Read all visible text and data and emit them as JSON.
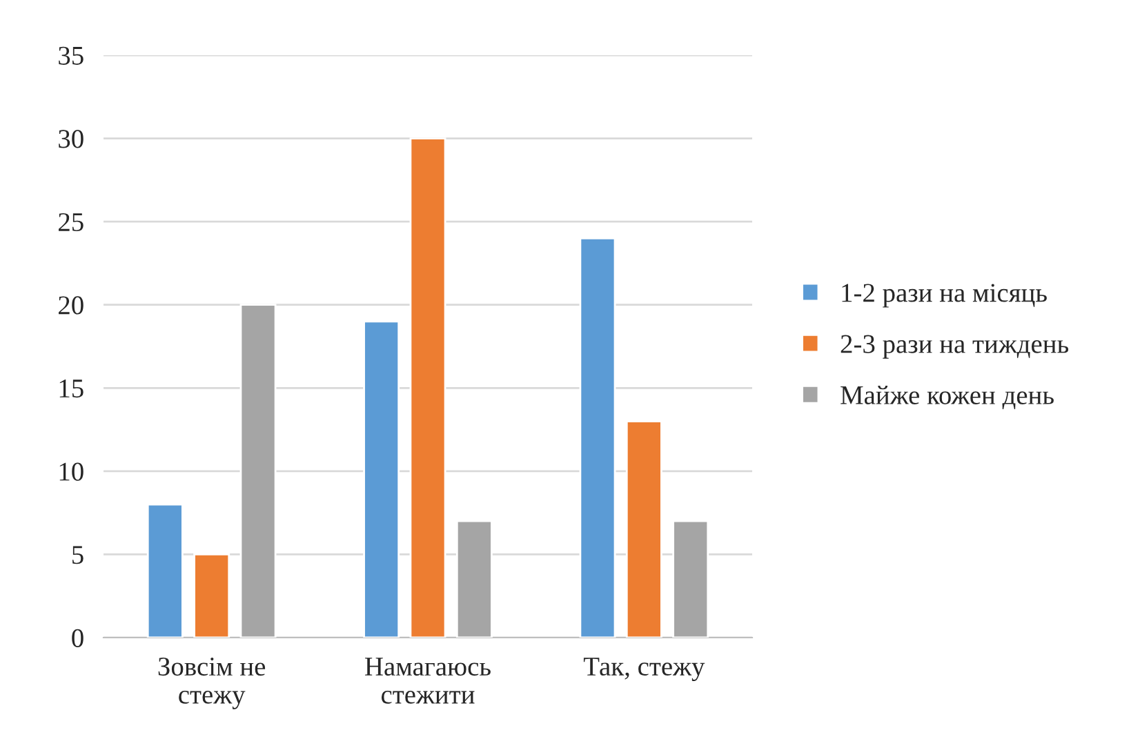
{
  "chart_data": {
    "type": "bar",
    "categories": [
      "Зовсім не\nстежу",
      "Намагаюсь\nстежити",
      "Так, стежу"
    ],
    "series": [
      {
        "name": "1-2 рази на місяць",
        "color": "#5b9bd5",
        "values": [
          8,
          19,
          24
        ]
      },
      {
        "name": "2-3 рази на тиждень",
        "color": "#ed7d31",
        "values": [
          5,
          30,
          13
        ]
      },
      {
        "name": "Майже кожен день",
        "color": "#a5a5a5",
        "values": [
          20,
          7,
          7
        ]
      }
    ],
    "ylim": [
      0,
      35
    ],
    "yticks": [
      0,
      5,
      10,
      15,
      20,
      25,
      30,
      35
    ],
    "grid": "y",
    "legend": "right"
  }
}
